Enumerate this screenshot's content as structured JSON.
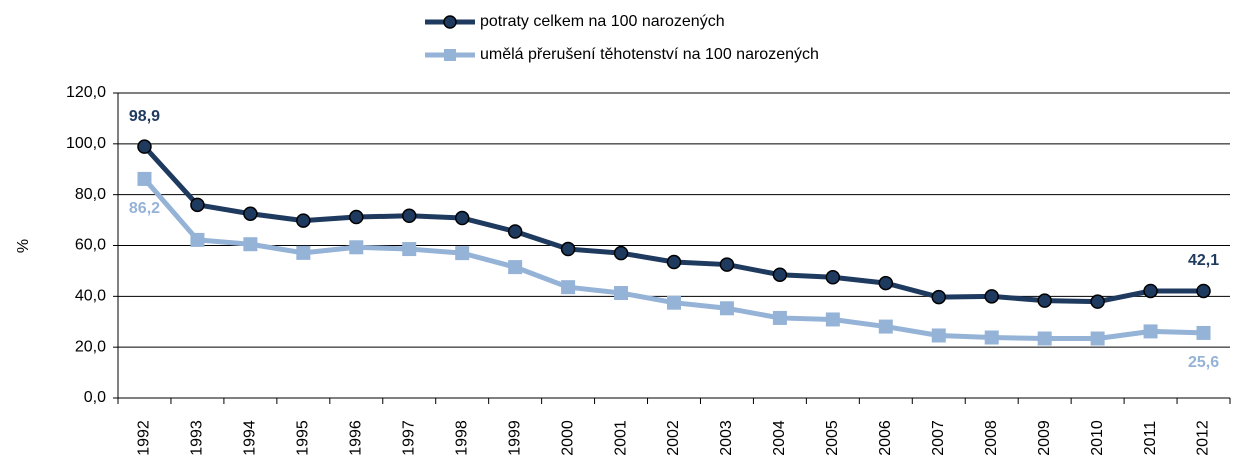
{
  "chart_data": {
    "type": "line",
    "categories": [
      "1992",
      "1993",
      "1994",
      "1995",
      "1996",
      "1997",
      "1998",
      "1999",
      "2000",
      "2001",
      "2002",
      "2003",
      "2004",
      "2005",
      "2006",
      "2007",
      "2008",
      "2009",
      "2010",
      "2011",
      "2012"
    ],
    "series": [
      {
        "name": "potraty celkem na 100 narozených",
        "color": "#1f3a5f",
        "marker": "circle",
        "values": [
          98.9,
          76,
          72.5,
          69.8,
          71.2,
          71.7,
          70.8,
          65.5,
          58.6,
          57,
          53.5,
          52.5,
          48.5,
          47.5,
          45.2,
          39.7,
          40,
          38.3,
          37.9,
          42.1,
          42.1
        ],
        "value_labels": [
          "98,9",
          null,
          null,
          null,
          null,
          null,
          null,
          null,
          null,
          null,
          null,
          null,
          null,
          null,
          null,
          null,
          null,
          null,
          null,
          null,
          "42,1"
        ]
      },
      {
        "name": "umělá přerušení těhotenství na 100 narozených",
        "color": "#95b3d7",
        "marker": "square",
        "values": [
          86.2,
          62.2,
          60.5,
          57.1,
          59.3,
          58.6,
          57,
          51.5,
          43.6,
          41.3,
          37.5,
          35.3,
          31.5,
          30.9,
          28.1,
          24.6,
          23.8,
          23.4,
          23.4,
          26.2,
          25.6
        ],
        "value_labels": [
          "86,2",
          null,
          null,
          null,
          null,
          null,
          null,
          null,
          null,
          null,
          null,
          null,
          null,
          null,
          null,
          null,
          null,
          null,
          null,
          null,
          "25,6"
        ]
      }
    ],
    "ylabel": "%",
    "ylim": [
      0,
      120
    ],
    "yticks": [
      {
        "value": 0,
        "label": "0,0"
      },
      {
        "value": 20,
        "label": "20,0"
      },
      {
        "value": 40,
        "label": "40,0"
      },
      {
        "value": 60,
        "label": "60,0"
      },
      {
        "value": 80,
        "label": "80,0"
      },
      {
        "value": 100,
        "label": "100,0"
      },
      {
        "value": 120,
        "label": "120,0"
      }
    ],
    "grid": true,
    "legend": "top"
  }
}
